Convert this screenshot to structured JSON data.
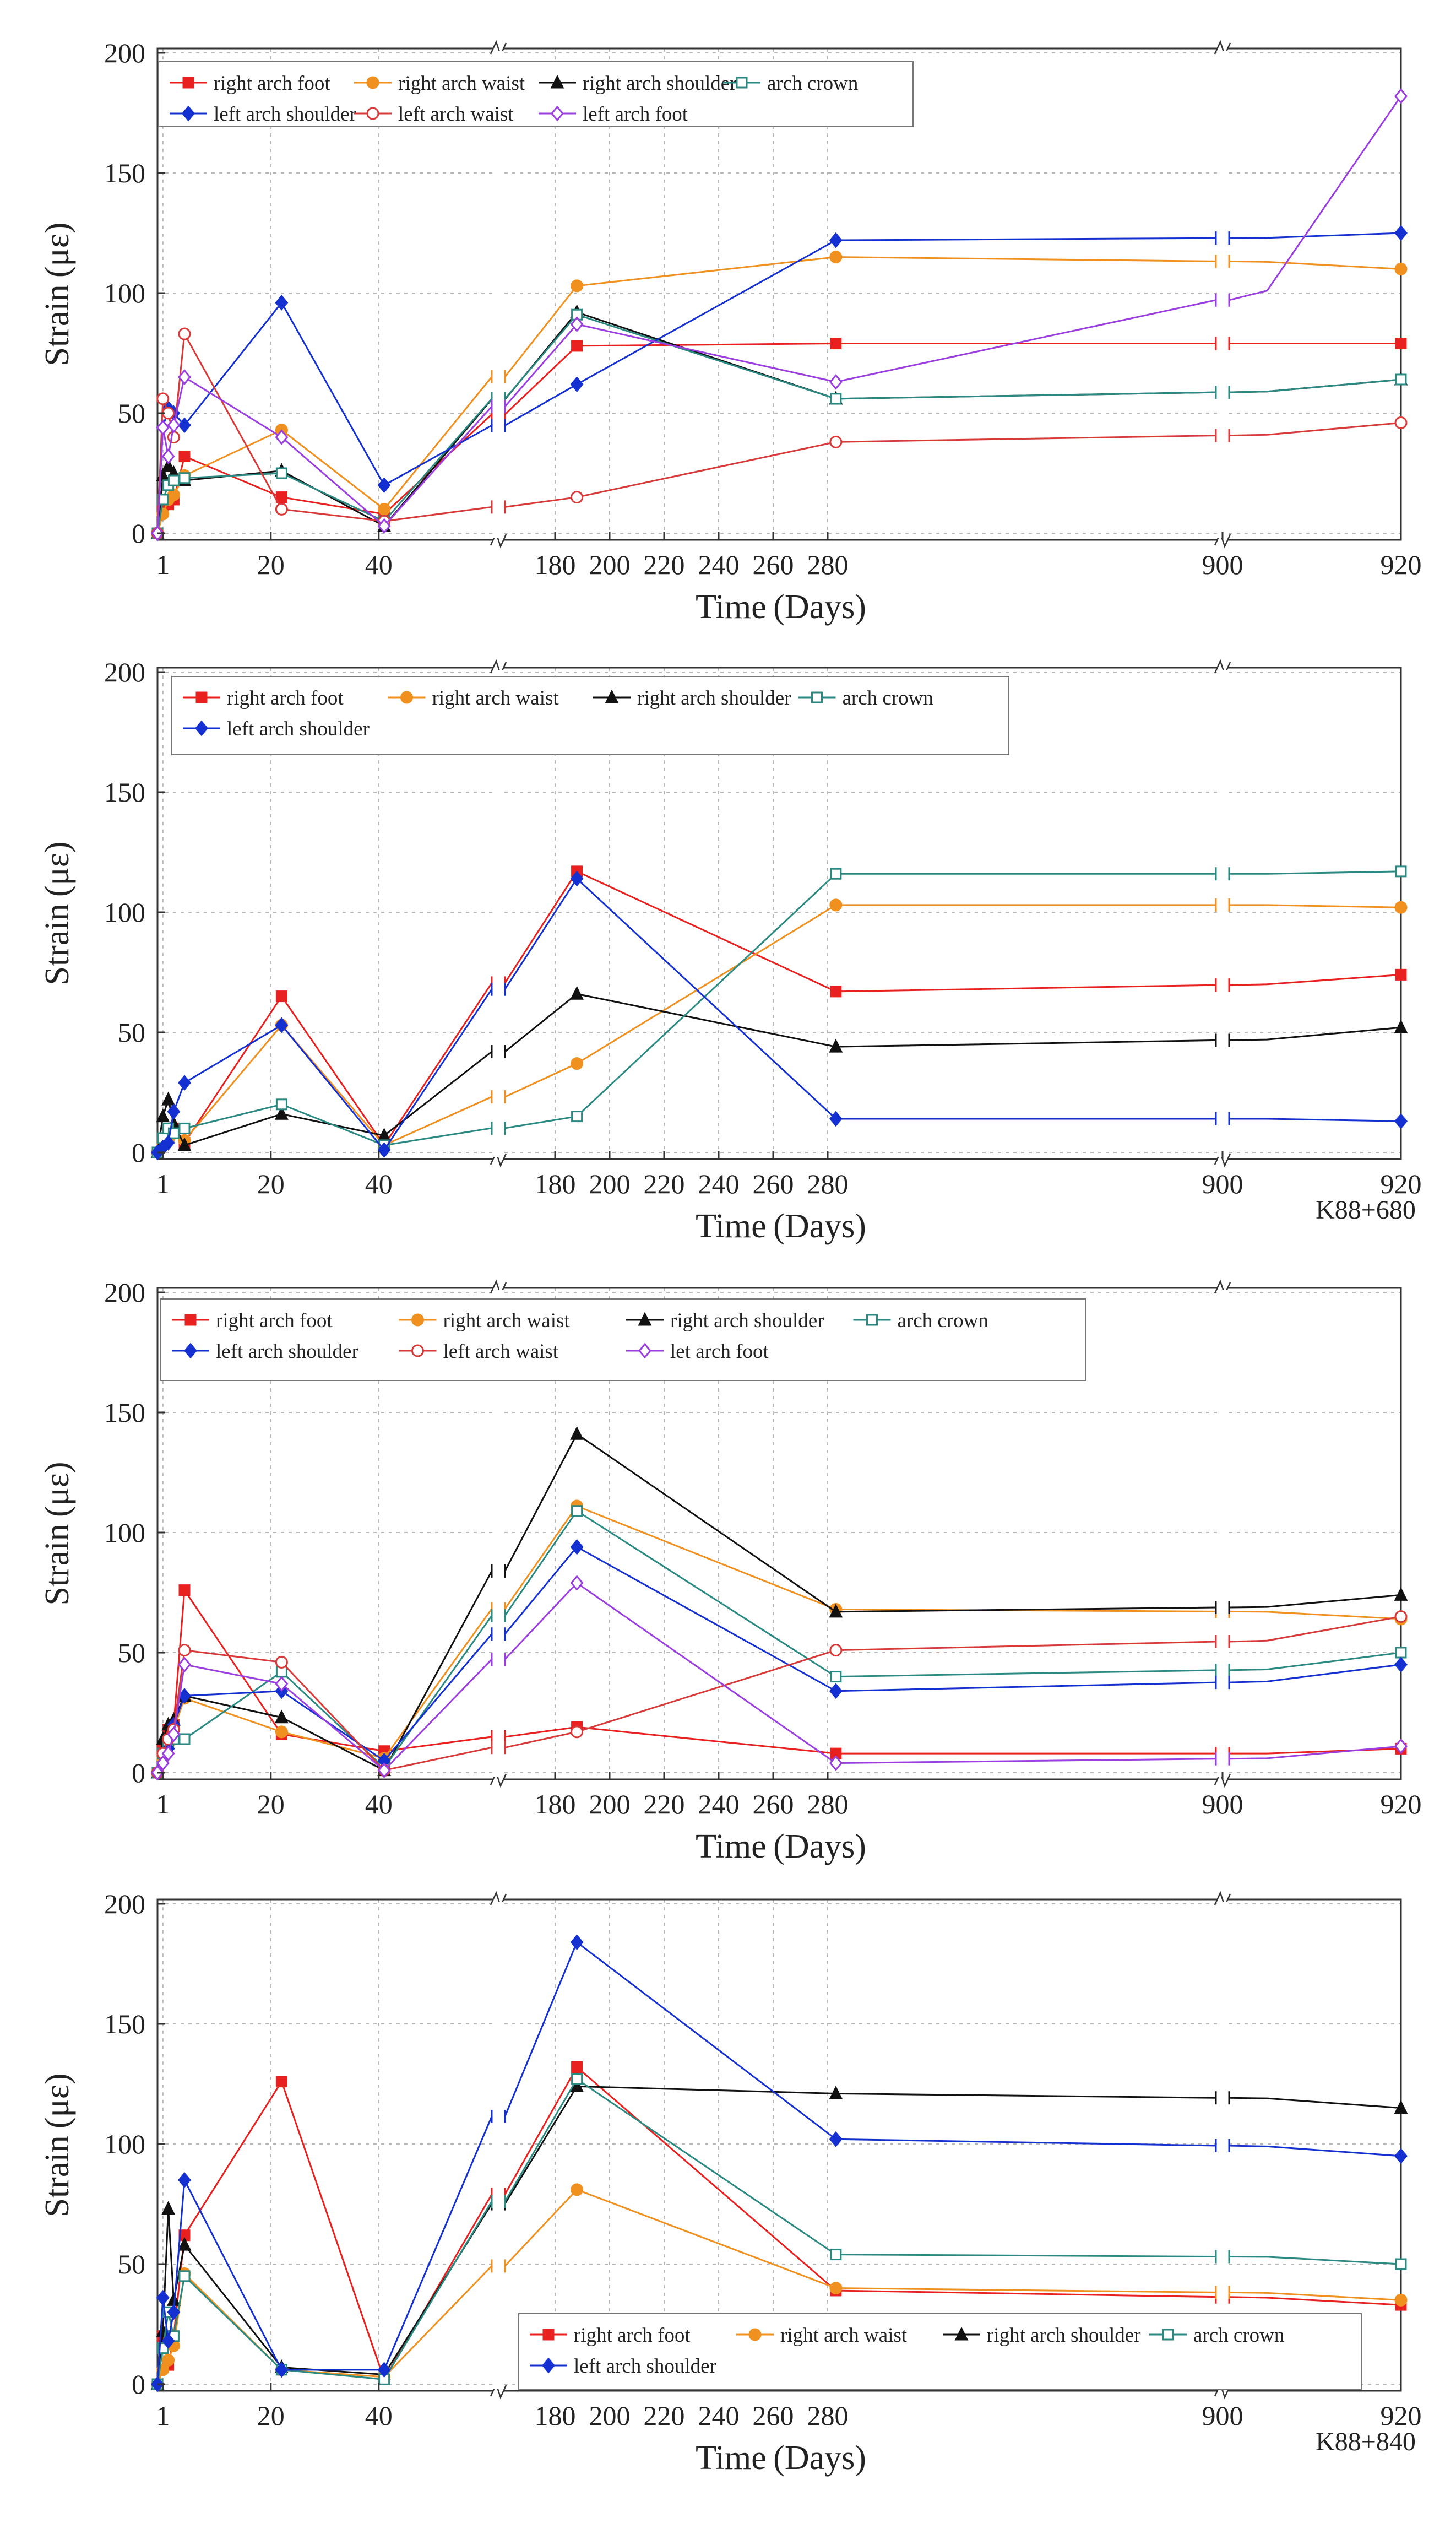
{
  "colors": {
    "right_arch_foot": "#e8201f",
    "right_arch_waist": "#f0901e",
    "right_arch_shoulder": "#111111",
    "arch_crown": "#2a8a82",
    "left_arch_shoulder": "#1530d0",
    "left_arch_waist": "#d83a3a",
    "left_arch_foot": "#9a3ee0"
  },
  "chart_data": [
    {
      "type": "line",
      "title": "",
      "xlabel": "Time (Days)",
      "ylabel": "Strain (με)",
      "ylim": [
        0,
        200
      ],
      "yticks": [
        0,
        50,
        100,
        150,
        200
      ],
      "xticks": [
        "1",
        "20",
        "40",
        "180",
        "200",
        "220",
        "240",
        "260",
        "280",
        "900",
        "920"
      ],
      "note": "",
      "series": [
        {
          "name": "right arch foot",
          "key": "right_arch_foot",
          "marker": "square-filled",
          "x": [
            0,
            1,
            2,
            3,
            5,
            23,
            42,
            188,
            283,
            905,
            920
          ],
          "y": [
            0,
            10,
            12,
            14,
            32,
            15,
            8,
            78,
            79,
            79,
            79
          ]
        },
        {
          "name": "right arch waist",
          "key": "right_arch_waist",
          "marker": "circle-filled",
          "x": [
            0,
            1,
            2,
            3,
            5,
            23,
            42,
            188,
            283,
            905,
            920
          ],
          "y": [
            0,
            8,
            14,
            16,
            24,
            43,
            10,
            103,
            115,
            113,
            110
          ]
        },
        {
          "name": "right arch shoulder",
          "key": "right_arch_shoulder",
          "marker": "triangle-filled",
          "x": [
            0,
            1,
            2,
            3,
            5,
            23,
            42,
            188,
            283,
            905,
            920
          ],
          "y": [
            0,
            24,
            28,
            25,
            22,
            26,
            3,
            92,
            56,
            59,
            64
          ]
        },
        {
          "name": "arch crown",
          "key": "arch_crown",
          "marker": "square-open",
          "x": [
            0,
            1,
            2,
            3,
            5,
            23,
            42,
            188,
            283,
            905,
            920
          ],
          "y": [
            0,
            14,
            20,
            22,
            23,
            25,
            5,
            91,
            56,
            59,
            64
          ]
        },
        {
          "name": "left arch shoulder",
          "key": "left_arch_shoulder",
          "marker": "diamond-filled",
          "x": [
            0,
            1,
            2,
            3,
            5,
            23,
            42,
            188,
            283,
            905,
            920
          ],
          "y": [
            0,
            44,
            52,
            50,
            45,
            96,
            20,
            62,
            122,
            123,
            125
          ]
        },
        {
          "name": "left arch waist",
          "key": "left_arch_waist",
          "marker": "circle-open",
          "x": [
            0,
            1,
            2,
            3,
            5,
            23,
            42,
            188,
            283,
            905,
            920
          ],
          "y": [
            0,
            56,
            50,
            40,
            83,
            10,
            5,
            15,
            38,
            41,
            46
          ]
        },
        {
          "name": "left arch foot",
          "key": "left_arch_foot",
          "marker": "diamond-open",
          "x": [
            0,
            1,
            2,
            3,
            5,
            23,
            42,
            188,
            283,
            905,
            920
          ],
          "y": [
            0,
            44,
            32,
            45,
            65,
            40,
            3,
            87,
            63,
            101,
            182
          ]
        }
      ]
    },
    {
      "type": "line",
      "title": "",
      "xlabel": "Time (Days)",
      "ylabel": "Strain (με)",
      "ylim": [
        0,
        200
      ],
      "yticks": [
        0,
        50,
        100,
        150,
        200
      ],
      "xticks": [
        "1",
        "20",
        "40",
        "180",
        "200",
        "220",
        "240",
        "260",
        "280",
        "900",
        "920"
      ],
      "note": "K88+680",
      "series": [
        {
          "name": "right arch foot",
          "key": "right_arch_foot",
          "marker": "square-filled",
          "x": [
            0,
            1,
            2,
            3,
            5,
            23,
            42,
            188,
            283,
            905,
            920
          ],
          "y": [
            0,
            5,
            8,
            10,
            4,
            65,
            3,
            117,
            67,
            70,
            74
          ]
        },
        {
          "name": "right arch waist",
          "key": "right_arch_waist",
          "marker": "circle-filled",
          "x": [
            0,
            1,
            2,
            3,
            5,
            23,
            42,
            188,
            283,
            905,
            920
          ],
          "y": [
            0,
            3,
            5,
            8,
            5,
            53,
            3,
            37,
            103,
            103,
            102
          ]
        },
        {
          "name": "right arch shoulder",
          "key": "right_arch_shoulder",
          "marker": "triangle-filled",
          "x": [
            0,
            1,
            2,
            3,
            5,
            23,
            42,
            188,
            283,
            905,
            920
          ],
          "y": [
            0,
            15,
            22,
            12,
            3,
            16,
            7,
            66,
            44,
            47,
            52
          ]
        },
        {
          "name": "arch crown",
          "key": "arch_crown",
          "marker": "square-open",
          "x": [
            0,
            1,
            2,
            3,
            5,
            23,
            42,
            188,
            283,
            905,
            920
          ],
          "y": [
            0,
            6,
            10,
            8,
            10,
            20,
            3,
            15,
            116,
            116,
            117
          ]
        },
        {
          "name": "left arch shoulder",
          "key": "left_arch_shoulder",
          "marker": "diamond-filled",
          "x": [
            0,
            1,
            2,
            3,
            5,
            23,
            42,
            188,
            283,
            905,
            920
          ],
          "y": [
            0,
            2,
            4,
            17,
            29,
            53,
            1,
            114,
            14,
            14,
            13
          ]
        }
      ]
    },
    {
      "type": "line",
      "title": "",
      "xlabel": "Time (Days)",
      "ylabel": "Strain (με)",
      "ylim": [
        0,
        200
      ],
      "yticks": [
        0,
        50,
        100,
        150,
        200
      ],
      "xticks": [
        "1",
        "20",
        "40",
        "180",
        "200",
        "220",
        "240",
        "260",
        "280",
        "900",
        "920"
      ],
      "note": "",
      "series": [
        {
          "name": "right arch foot",
          "key": "right_arch_foot",
          "marker": "square-filled",
          "x": [
            0,
            1,
            2,
            3,
            5,
            23,
            42,
            188,
            283,
            905,
            920
          ],
          "y": [
            0,
            10,
            18,
            20,
            76,
            16,
            9,
            19,
            8,
            8,
            10
          ]
        },
        {
          "name": "right arch waist",
          "key": "right_arch_waist",
          "marker": "circle-filled",
          "x": [
            0,
            1,
            2,
            3,
            5,
            23,
            42,
            188,
            283,
            905,
            920
          ],
          "y": [
            0,
            6,
            12,
            18,
            31,
            17,
            6,
            111,
            68,
            67,
            64
          ]
        },
        {
          "name": "right arch shoulder",
          "key": "right_arch_shoulder",
          "marker": "triangle-filled",
          "x": [
            0,
            1,
            2,
            3,
            5,
            23,
            42,
            188,
            283,
            905,
            920
          ],
          "y": [
            0,
            14,
            20,
            22,
            32,
            23,
            1,
            141,
            67,
            69,
            74
          ]
        },
        {
          "name": "arch crown",
          "key": "arch_crown",
          "marker": "square-open",
          "x": [
            0,
            1,
            2,
            3,
            5,
            23,
            42,
            188,
            283,
            905,
            920
          ],
          "y": [
            0,
            8,
            12,
            14,
            14,
            42,
            2,
            109,
            40,
            43,
            50
          ]
        },
        {
          "name": "left arch shoulder",
          "key": "left_arch_shoulder",
          "marker": "diamond-filled",
          "x": [
            0,
            1,
            2,
            3,
            5,
            23,
            42,
            188,
            283,
            905,
            920
          ],
          "y": [
            0,
            4,
            10,
            20,
            32,
            34,
            5,
            94,
            34,
            38,
            45
          ]
        },
        {
          "name": "left arch waist",
          "key": "left_arch_waist",
          "marker": "circle-open",
          "x": [
            0,
            1,
            2,
            3,
            5,
            23,
            42,
            188,
            283,
            905,
            920
          ],
          "y": [
            0,
            8,
            14,
            18,
            51,
            46,
            1,
            17,
            51,
            55,
            65
          ]
        },
        {
          "name": "let arch foot",
          "key": "left_arch_foot",
          "marker": "diamond-open",
          "x": [
            0,
            1,
            2,
            3,
            5,
            23,
            42,
            188,
            283,
            905,
            920
          ],
          "y": [
            0,
            4,
            8,
            16,
            45,
            37,
            1,
            79,
            4,
            6,
            11
          ]
        }
      ]
    },
    {
      "type": "line",
      "title": "",
      "xlabel": "Time (Days)",
      "ylabel": "Strain (με)",
      "ylim": [
        0,
        200
      ],
      "yticks": [
        0,
        50,
        100,
        150,
        200
      ],
      "xticks": [
        "1",
        "20",
        "40",
        "180",
        "200",
        "220",
        "240",
        "260",
        "280",
        "900",
        "920"
      ],
      "note": "K88+840",
      "series": [
        {
          "name": "right arch foot",
          "key": "right_arch_foot",
          "marker": "square-filled",
          "x": [
            0,
            1,
            2,
            3,
            5,
            23,
            42,
            188,
            283,
            905,
            920
          ],
          "y": [
            0,
            20,
            8,
            20,
            62,
            126,
            2,
            132,
            39,
            36,
            33
          ]
        },
        {
          "name": "right arch waist",
          "key": "right_arch_waist",
          "marker": "circle-filled",
          "x": [
            0,
            1,
            2,
            3,
            5,
            23,
            42,
            188,
            283,
            905,
            920
          ],
          "y": [
            0,
            6,
            10,
            16,
            46,
            6,
            3,
            81,
            40,
            38,
            35
          ]
        },
        {
          "name": "right arch shoulder",
          "key": "right_arch_shoulder",
          "marker": "triangle-filled",
          "x": [
            0,
            1,
            2,
            3,
            5,
            23,
            42,
            188,
            283,
            905,
            920
          ],
          "y": [
            0,
            22,
            73,
            35,
            58,
            7,
            4,
            124,
            121,
            119,
            115
          ]
        },
        {
          "name": "arch crown",
          "key": "arch_crown",
          "marker": "square-open",
          "x": [
            0,
            1,
            2,
            3,
            5,
            23,
            42,
            188,
            283,
            905,
            920
          ],
          "y": [
            0,
            15,
            30,
            20,
            45,
            6,
            2,
            127,
            54,
            53,
            50
          ]
        },
        {
          "name": "left arch shoulder",
          "key": "left_arch_shoulder",
          "marker": "diamond-filled",
          "x": [
            0,
            1,
            2,
            3,
            5,
            23,
            42,
            188,
            283,
            905,
            920
          ],
          "y": [
            0,
            36,
            18,
            30,
            85,
            6,
            6,
            184,
            102,
            99,
            95
          ]
        }
      ]
    }
  ]
}
